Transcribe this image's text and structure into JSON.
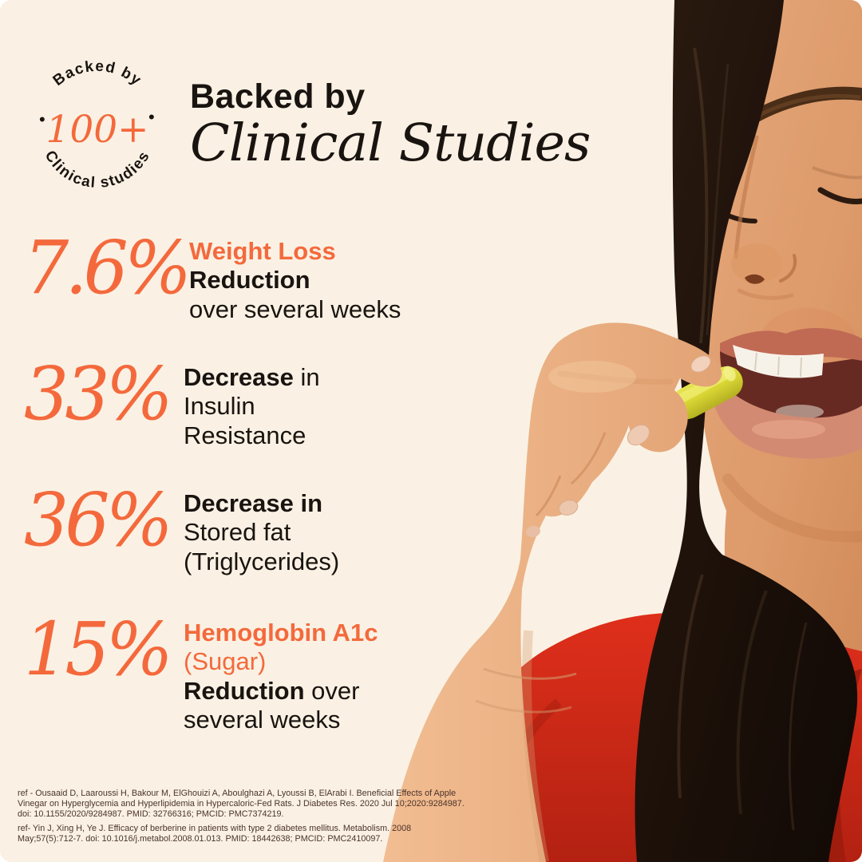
{
  "badge": {
    "arc_top": "Backed by",
    "center": "100+",
    "arc_bottom": "Clinical studies",
    "dot_left": "•",
    "dot_right": "•"
  },
  "header": {
    "line1": "Backed by",
    "line2": "Clinical Studies"
  },
  "stats": [
    {
      "value": "7.6%",
      "lines": [
        [
          {
            "t": "Weight Loss",
            "bold": true,
            "orange": true
          }
        ],
        [
          {
            "t": "Reduction",
            "bold": true
          }
        ],
        [
          {
            "t": "over several weeks"
          }
        ]
      ]
    },
    {
      "value": "33%",
      "lines": [
        [
          {
            "t": "Decrease",
            "bold": true
          },
          {
            "t": " in"
          }
        ],
        [
          {
            "t": "Insulin"
          }
        ],
        [
          {
            "t": "Resistance"
          }
        ]
      ]
    },
    {
      "value": "36%",
      "lines": [
        [
          {
            "t": "Decrease in",
            "bold": true
          }
        ],
        [
          {
            "t": "Stored fat"
          }
        ],
        [
          {
            "t": "(Triglycerides)"
          }
        ]
      ]
    },
    {
      "value": "15%",
      "lines": [
        [
          {
            "t": "Hemoglobin A1c",
            "bold": true,
            "orange": true
          }
        ],
        [
          {
            "t": "(Sugar)",
            "orange": true
          }
        ],
        [
          {
            "t": "Reduction",
            "bold": true
          },
          {
            "t": " over"
          }
        ],
        [
          {
            "t": "several weeks"
          }
        ]
      ]
    }
  ],
  "references": [
    "ref - Ousaaid D, Laaroussi H, Bakour M, ElGhouizi A, Aboulghazi A, Lyoussi B, ElArabi I. Beneficial Effects of Apple Vinegar on Hyperglycemia and Hyperlipidemia in Hypercaloric-Fed Rats. J Diabetes Res. 2020 Jul 10;2020:9284987. doi: 10.1155/2020/9284987. PMID: 32766316; PMCID: PMC7374219.",
    "ref- Yin J, Xing H, Ye J. Efficacy of berberine in patients with type 2 diabetes mellitus. Metabolism. 2008 May;57(5):712-7. doi: 10.1016/j.metabol.2008.01.013. PMID: 18442638; PMCID: PMC2410097."
  ],
  "colors": {
    "background": "#faf1e4",
    "accent_orange": "#f4693c",
    "text_dark": "#191410",
    "reference_text": "#4a332a",
    "shirt_red": "#d62a19",
    "pill_yellow": "#d8d434",
    "hair_dark": "#1c1009"
  },
  "illustration": {
    "description": "woman-taking-yellow-capsule-photo"
  }
}
